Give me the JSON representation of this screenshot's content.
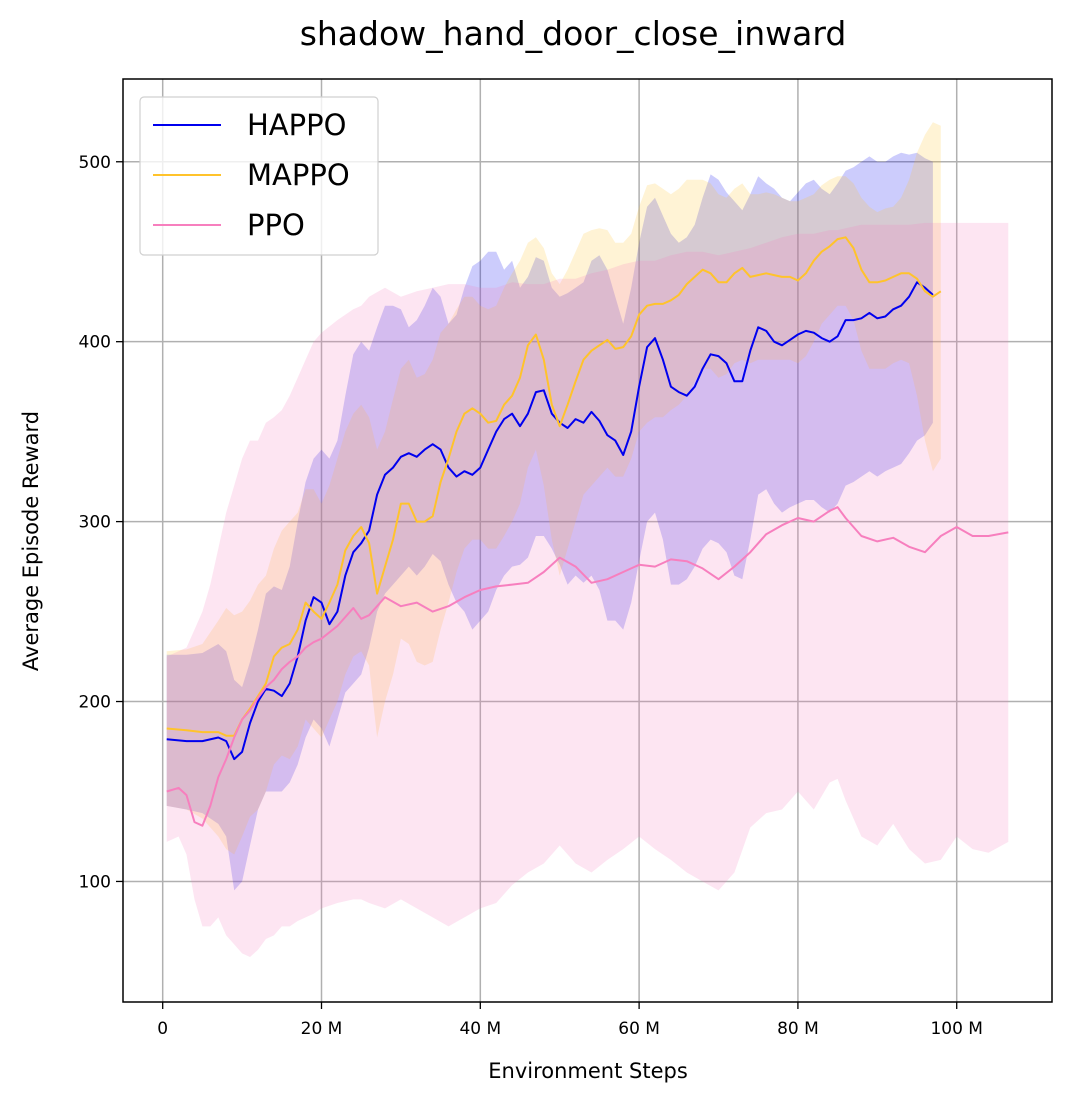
{
  "chart_data": {
    "type": "line",
    "title": "shadow_hand_door_close_inward",
    "xlabel": "Environment Steps",
    "ylabel": "Average Episode Reward",
    "xlim": [
      -5,
      112
    ],
    "ylim": [
      33,
      546
    ],
    "xticks": [
      0,
      20,
      40,
      60,
      80,
      100
    ],
    "xtick_labels": [
      "0",
      "20 M",
      "40 M",
      "60 M",
      "80 M",
      "100 M"
    ],
    "yticks": [
      100,
      200,
      300,
      400,
      500
    ],
    "ytick_labels": [
      "100",
      "200",
      "300",
      "400",
      "500"
    ],
    "grid": true,
    "legend_position": "top-left",
    "x_unit": "M",
    "series": [
      {
        "name": "HAPPO",
        "color": "#0000ee",
        "x": [
          0.5,
          3,
          5,
          7,
          8,
          9,
          10,
          11,
          12,
          13,
          14,
          15,
          16,
          17,
          18,
          19,
          20,
          21,
          22,
          23,
          24,
          25,
          26,
          27,
          28,
          29,
          30,
          31,
          32,
          33,
          34,
          35,
          36,
          37,
          38,
          39,
          40,
          41,
          42,
          43,
          44,
          45,
          46,
          47,
          48,
          49,
          50,
          51,
          52,
          53,
          54,
          55,
          56,
          57,
          58,
          59,
          60,
          61,
          62,
          63,
          64,
          65,
          66,
          67,
          68,
          69,
          70,
          71,
          72,
          73,
          74,
          75,
          76,
          77,
          78,
          79,
          80,
          81,
          82,
          83,
          84,
          85,
          86,
          87,
          88,
          89,
          90,
          91,
          92,
          93,
          94,
          95,
          96,
          97
        ],
        "y": [
          179,
          178,
          178,
          180,
          178,
          168,
          172,
          188,
          200,
          207,
          206,
          203,
          210,
          225,
          245,
          258,
          255,
          243,
          250,
          270,
          283,
          288,
          295,
          315,
          326,
          330,
          336,
          338,
          336,
          340,
          343,
          340,
          330,
          325,
          328,
          326,
          330,
          340,
          350,
          357,
          360,
          353,
          360,
          372,
          373,
          360,
          355,
          352,
          357,
          355,
          361,
          356,
          348,
          345,
          337,
          350,
          375,
          397,
          402,
          390,
          375,
          372,
          370,
          375,
          385,
          393,
          392,
          388,
          378,
          378,
          395,
          408,
          406,
          400,
          398,
          401,
          404,
          406,
          405,
          402,
          400,
          403,
          412,
          412,
          413,
          416,
          413,
          414,
          418,
          420,
          425,
          433,
          430,
          426
        ],
        "upper": [
          226,
          226,
          227,
          232,
          228,
          212,
          208,
          222,
          240,
          260,
          264,
          262,
          275,
          300,
          322,
          335,
          340,
          335,
          345,
          370,
          393,
          400,
          395,
          408,
          420,
          420,
          418,
          408,
          412,
          420,
          430,
          425,
          410,
          415,
          430,
          442,
          445,
          450,
          450,
          440,
          445,
          430,
          436,
          447,
          445,
          430,
          425,
          427,
          430,
          433,
          445,
          448,
          440,
          425,
          410,
          430,
          455,
          475,
          480,
          470,
          460,
          455,
          458,
          465,
          480,
          493,
          490,
          483,
          478,
          473,
          482,
          492,
          488,
          485,
          480,
          478,
          483,
          488,
          490,
          485,
          482,
          488,
          495,
          497,
          500,
          503,
          500,
          500,
          503,
          505,
          504,
          505,
          502,
          500
        ],
        "lower": [
          142,
          140,
          138,
          132,
          125,
          95,
          100,
          120,
          140,
          150,
          150,
          150,
          155,
          165,
          180,
          190,
          185,
          175,
          190,
          205,
          210,
          215,
          230,
          250,
          260,
          265,
          270,
          275,
          270,
          275,
          282,
          278,
          265,
          255,
          250,
          240,
          245,
          250,
          262,
          270,
          275,
          276,
          280,
          292,
          292,
          285,
          276,
          265,
          270,
          266,
          270,
          262,
          245,
          245,
          240,
          255,
          278,
          300,
          305,
          290,
          265,
          265,
          268,
          275,
          285,
          290,
          288,
          283,
          270,
          268,
          290,
          315,
          318,
          310,
          305,
          308,
          310,
          312,
          312,
          308,
          305,
          310,
          320,
          322,
          325,
          328,
          325,
          328,
          330,
          332,
          338,
          345,
          348,
          355
        ]
      },
      {
        "name": "MAPPO",
        "color": "#ffc32b",
        "x": [
          0.5,
          3,
          5,
          7,
          8,
          9,
          10,
          11,
          12,
          13,
          14,
          15,
          16,
          17,
          18,
          19,
          20,
          21,
          22,
          23,
          24,
          25,
          26,
          27,
          28,
          29,
          30,
          31,
          32,
          33,
          34,
          35,
          36,
          37,
          38,
          39,
          40,
          41,
          42,
          43,
          44,
          45,
          46,
          47,
          48,
          49,
          50,
          51,
          52,
          53,
          54,
          55,
          56,
          57,
          58,
          59,
          60,
          61,
          62,
          63,
          64,
          65,
          66,
          67,
          68,
          69,
          70,
          71,
          72,
          73,
          74,
          75,
          76,
          77,
          78,
          79,
          80,
          81,
          82,
          83,
          84,
          85,
          86,
          87,
          88,
          89,
          90,
          91,
          92,
          93,
          94,
          95,
          96,
          97,
          98
        ],
        "y": [
          185,
          184,
          183,
          183,
          181,
          181,
          190,
          196,
          203,
          210,
          225,
          230,
          232,
          240,
          255,
          250,
          246,
          255,
          265,
          284,
          292,
          297,
          288,
          260,
          275,
          290,
          310,
          310,
          300,
          300,
          303,
          322,
          335,
          350,
          360,
          363,
          360,
          355,
          356,
          365,
          370,
          380,
          398,
          404,
          390,
          365,
          353,
          365,
          378,
          390,
          395,
          398,
          401,
          396,
          397,
          403,
          415,
          420,
          421,
          421,
          423,
          426,
          432,
          436,
          440,
          438,
          433,
          433,
          438,
          441,
          436,
          437,
          438,
          437,
          436,
          436,
          434,
          438,
          445,
          450,
          453,
          457,
          458,
          452,
          440,
          433,
          433,
          434,
          436,
          438,
          438,
          435,
          428,
          425,
          428
        ],
        "upper": [
          228,
          229,
          232,
          245,
          252,
          248,
          250,
          256,
          265,
          270,
          285,
          295,
          300,
          305,
          318,
          318,
          310,
          320,
          335,
          350,
          360,
          365,
          358,
          340,
          350,
          368,
          385,
          390,
          380,
          382,
          390,
          405,
          410,
          418,
          425,
          425,
          420,
          418,
          420,
          430,
          438,
          445,
          455,
          458,
          452,
          438,
          432,
          440,
          450,
          460,
          462,
          463,
          462,
          455,
          455,
          460,
          475,
          487,
          488,
          485,
          482,
          485,
          490,
          490,
          490,
          488,
          482,
          480,
          485,
          488,
          482,
          482,
          483,
          482,
          480,
          478,
          478,
          480,
          482,
          487,
          490,
          492,
          492,
          488,
          480,
          475,
          472,
          474,
          475,
          480,
          490,
          505,
          515,
          522,
          520
        ],
        "lower": [
          142,
          140,
          135,
          125,
          118,
          115,
          125,
          136,
          140,
          150,
          165,
          170,
          168,
          175,
          190,
          185,
          180,
          190,
          200,
          215,
          225,
          228,
          220,
          180,
          200,
          215,
          235,
          232,
          222,
          220,
          222,
          240,
          255,
          272,
          285,
          290,
          290,
          285,
          285,
          292,
          300,
          310,
          330,
          340,
          320,
          290,
          270,
          285,
          300,
          315,
          320,
          325,
          330,
          325,
          325,
          335,
          350,
          355,
          358,
          358,
          362,
          365,
          370,
          378,
          385,
          385,
          380,
          382,
          388,
          390,
          388,
          390,
          390,
          390,
          390,
          390,
          388,
          392,
          400,
          410,
          415,
          420,
          420,
          412,
          395,
          385,
          385,
          385,
          388,
          390,
          388,
          370,
          345,
          328,
          335
        ]
      },
      {
        "name": "PPO",
        "color": "#f77fbe",
        "x": [
          0.5,
          2,
          3,
          4,
          5,
          6,
          7,
          8,
          9,
          10,
          11,
          12,
          13,
          14,
          15,
          16,
          17,
          18,
          19,
          20,
          22,
          24,
          25,
          26,
          28,
          30,
          32,
          34,
          36,
          38,
          40,
          42,
          44,
          46,
          48,
          50,
          52,
          54,
          56,
          58,
          60,
          62,
          64,
          66,
          68,
          70,
          72,
          74,
          76,
          78,
          80,
          82,
          84,
          85,
          86,
          88,
          90,
          92,
          94,
          96,
          98,
          100,
          102,
          104,
          106.5
        ],
        "y": [
          150,
          152,
          148,
          133,
          131,
          142,
          158,
          168,
          180,
          190,
          195,
          202,
          208,
          212,
          218,
          222,
          225,
          230,
          233,
          235,
          242,
          252,
          246,
          248,
          258,
          253,
          255,
          250,
          253,
          258,
          262,
          264,
          265,
          266,
          272,
          280,
          275,
          266,
          268,
          272,
          276,
          275,
          279,
          278,
          274,
          268,
          275,
          283,
          293,
          298,
          302,
          300,
          306,
          308,
          302,
          292,
          289,
          291,
          286,
          283,
          292,
          297,
          292,
          292,
          294
        ],
        "upper": [
          225,
          228,
          230,
          240,
          250,
          265,
          285,
          305,
          320,
          335,
          345,
          345,
          355,
          358,
          362,
          370,
          380,
          390,
          400,
          405,
          412,
          418,
          420,
          425,
          430,
          425,
          428,
          430,
          432,
          432,
          430,
          430,
          433,
          432,
          432,
          435,
          435,
          438,
          440,
          443,
          445,
          445,
          448,
          450,
          450,
          448,
          450,
          452,
          455,
          458,
          460,
          460,
          462,
          462,
          463,
          465,
          465,
          465,
          465,
          466,
          466,
          466,
          466,
          466,
          466
        ],
        "lower": [
          122,
          125,
          115,
          90,
          75,
          75,
          80,
          70,
          65,
          60,
          58,
          62,
          68,
          70,
          75,
          75,
          78,
          80,
          82,
          85,
          88,
          90,
          90,
          88,
          85,
          90,
          85,
          80,
          75,
          80,
          85,
          88,
          98,
          105,
          110,
          120,
          110,
          105,
          112,
          118,
          125,
          118,
          112,
          105,
          100,
          95,
          105,
          130,
          138,
          140,
          150,
          140,
          155,
          157,
          145,
          125,
          120,
          132,
          118,
          110,
          112,
          125,
          118,
          116,
          122
        ]
      }
    ]
  }
}
